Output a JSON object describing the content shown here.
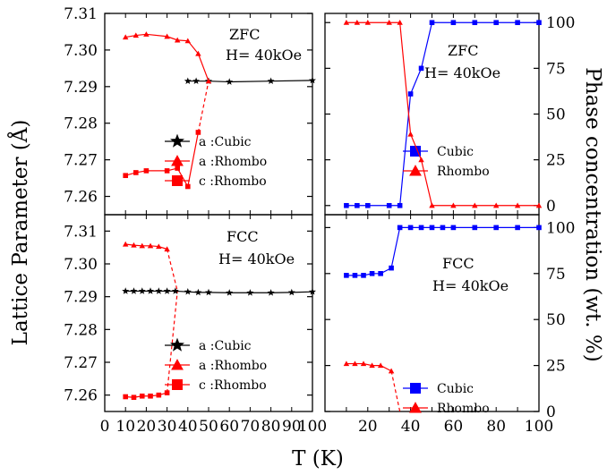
{
  "chart_data": [
    {
      "panel": "top-left",
      "type": "line",
      "ylabel": "Lattice Parameter (Å)",
      "xlabel": "T (K)",
      "xlim": [
        0,
        100
      ],
      "ylim": [
        7.255,
        7.31
      ],
      "yticks": [
        "7.26",
        "7.27",
        "7.28",
        "7.29",
        "7.30",
        "7.31"
      ],
      "ytick_values": [
        7.26,
        7.27,
        7.28,
        7.29,
        7.3,
        7.31
      ],
      "annotations": [
        "ZFC",
        "H= 40kOe"
      ],
      "legend_position": "lower-right",
      "series": [
        {
          "name": "a :Cubic",
          "color": "#000000",
          "marker": "star",
          "x": [
            40,
            44,
            50,
            60,
            80,
            100
          ],
          "y": [
            7.2915,
            7.2915,
            7.2915,
            7.2913,
            7.2915,
            7.2917
          ]
        },
        {
          "name": "a :Rhombo",
          "color": "#ff0000",
          "marker": "triangle",
          "x": [
            10,
            15,
            20,
            30,
            35,
            40,
            45,
            50
          ],
          "y": [
            7.3035,
            7.304,
            7.3043,
            7.3037,
            7.3027,
            7.3025,
            7.299,
            7.2915
          ]
        },
        {
          "name": "c :Rhombo",
          "color": "#ff0000",
          "marker": "square",
          "x": [
            10,
            15,
            20,
            30,
            35,
            40,
            45
          ],
          "y": [
            7.2657,
            7.2665,
            7.267,
            7.267,
            7.2677,
            7.2627,
            7.2775
          ],
          "dashed_extension": {
            "x": [
              45,
              50
            ],
            "y": [
              7.2775,
              7.2915
            ]
          }
        }
      ]
    },
    {
      "panel": "top-right",
      "type": "line",
      "ylabel": "Phase concentration (wt. %)",
      "xlim": [
        0,
        100
      ],
      "ylim": [
        -5,
        105
      ],
      "yticks": [
        "0",
        "25",
        "50",
        "75",
        "100"
      ],
      "ytick_values": [
        0,
        25,
        50,
        75,
        100
      ],
      "annotations": [
        "ZFC",
        "H= 40kOe"
      ],
      "legend_position": "lower-right",
      "series": [
        {
          "name": "Cubic",
          "color": "#0000ff",
          "marker": "square",
          "x": [
            10,
            15,
            20,
            30,
            35,
            40,
            45,
            50,
            60,
            70,
            80,
            90,
            100
          ],
          "y": [
            0,
            0,
            0,
            0,
            0,
            61,
            75,
            100,
            100,
            100,
            100,
            100,
            100
          ]
        },
        {
          "name": "Rhombo",
          "color": "#ff0000",
          "marker": "triangle",
          "x": [
            10,
            15,
            20,
            30,
            35,
            40,
            45,
            50,
            60,
            70,
            80,
            90,
            100
          ],
          "y": [
            100,
            100,
            100,
            100,
            100,
            39,
            25,
            0,
            0,
            0,
            0,
            0,
            0
          ]
        }
      ]
    },
    {
      "panel": "bottom-left",
      "type": "line",
      "xlim": [
        0,
        100
      ],
      "ylim": [
        7.255,
        7.315
      ],
      "xticks": [
        "0",
        "10",
        "20",
        "30",
        "40",
        "50",
        "60",
        "70",
        "80",
        "90",
        "100"
      ],
      "xtick_values": [
        0,
        10,
        20,
        30,
        40,
        50,
        60,
        70,
        80,
        90,
        100
      ],
      "yticks": [
        "7.26",
        "7.27",
        "7.28",
        "7.29",
        "7.30",
        "7.31"
      ],
      "ytick_values": [
        7.26,
        7.27,
        7.28,
        7.29,
        7.3,
        7.31
      ],
      "annotations": [
        "FCC",
        "H= 40kOe"
      ],
      "legend_position": "lower-right",
      "series": [
        {
          "name": "a :Cubic",
          "color": "#000000",
          "marker": "star",
          "x": [
            10,
            14,
            18,
            22,
            26,
            30,
            34,
            40,
            45,
            50,
            60,
            70,
            80,
            90,
            100
          ],
          "y": [
            7.2917,
            7.2917,
            7.2917,
            7.2917,
            7.2917,
            7.2917,
            7.2917,
            7.2915,
            7.2913,
            7.2913,
            7.2912,
            7.2912,
            7.2912,
            7.2913,
            7.2915
          ]
        },
        {
          "name": "a :Rhombo",
          "color": "#ff0000",
          "marker": "triangle",
          "x": [
            10,
            14,
            18,
            22,
            26,
            30
          ],
          "y": [
            7.306,
            7.3057,
            7.3055,
            7.3055,
            7.3053,
            7.3045
          ]
        },
        {
          "name": "c :Rhombo",
          "color": "#ff0000",
          "marker": "square",
          "x": [
            10,
            14,
            18,
            22,
            26,
            30
          ],
          "y": [
            7.2595,
            7.2593,
            7.2597,
            7.2597,
            7.26,
            7.2607
          ]
        }
      ],
      "dashed_connectors": [
        {
          "color": "#ff0000",
          "x": [
            30,
            35
          ],
          "y": [
            7.3045,
            7.2917
          ]
        },
        {
          "color": "#ff0000",
          "x": [
            30,
            35
          ],
          "y": [
            7.2607,
            7.2917
          ]
        }
      ]
    },
    {
      "panel": "bottom-right",
      "type": "line",
      "xlim": [
        0,
        100
      ],
      "ylim": [
        0,
        107
      ],
      "xticks": [
        "20",
        "40",
        "60",
        "80",
        "100"
      ],
      "xtick_values": [
        20,
        40,
        60,
        80,
        100
      ],
      "yticks": [
        "0",
        "25",
        "50",
        "75",
        "100"
      ],
      "ytick_values": [
        0,
        25,
        50,
        75,
        100
      ],
      "annotations": [
        "FCC",
        "H= 40kOe"
      ],
      "legend_position": "lower-right",
      "series": [
        {
          "name": "Cubic",
          "color": "#0000ff",
          "marker": "square",
          "x": [
            10,
            14,
            18,
            22,
            26,
            31,
            35,
            40,
            45,
            50,
            55,
            60,
            70,
            80,
            90,
            100
          ],
          "y": [
            74,
            74,
            74,
            75,
            75,
            78,
            100,
            100,
            100,
            100,
            100,
            100,
            100,
            100,
            100,
            100
          ]
        },
        {
          "name": "Rhombo",
          "color": "#ff0000",
          "marker": "triangle",
          "x": [
            10,
            14,
            18,
            22,
            26,
            31
          ],
          "y": [
            26,
            26,
            26,
            25,
            25,
            22
          ]
        }
      ],
      "dashed_connectors": [
        {
          "color": "#ff0000",
          "x": [
            31,
            35
          ],
          "y": [
            22,
            0
          ]
        }
      ]
    }
  ],
  "figure": {
    "ylabel_left": "Lattice Parameter (Å)",
    "ylabel_right": "Phase concentration (wt. %)",
    "xlabel": "T (K)"
  }
}
